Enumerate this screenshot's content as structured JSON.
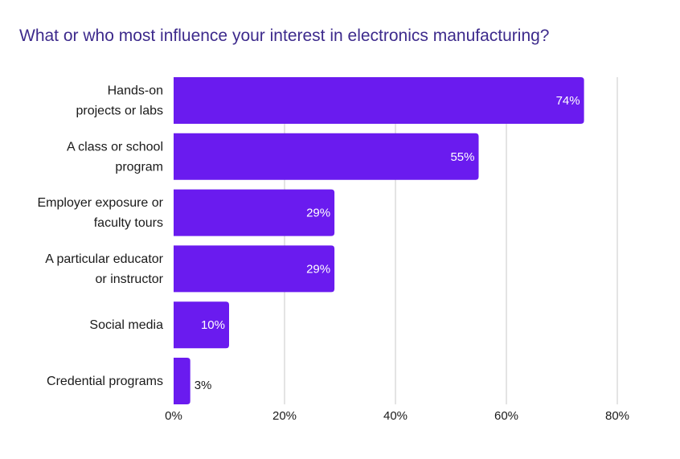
{
  "title": "What or who most influence your interest in electronics manufacturing?",
  "chart_data": {
    "type": "bar",
    "orientation": "horizontal",
    "categories": [
      [
        "Hands-on",
        "projects or labs"
      ],
      [
        "A class or school",
        "program"
      ],
      [
        "Employer exposure or",
        "faculty tours"
      ],
      [
        "A particular educator",
        "or instructor"
      ],
      [
        "Social media"
      ],
      [
        "Credential programs"
      ]
    ],
    "values": [
      74,
      55,
      29,
      29,
      10,
      3
    ],
    "value_labels": [
      "74%",
      "55%",
      "29%",
      "29%",
      "10%",
      "3%"
    ],
    "xlim": [
      0,
      80
    ],
    "xticks": [
      0,
      20,
      40,
      60,
      80
    ],
    "xtick_labels": [
      "0%",
      "20%",
      "40%",
      "60%",
      "80%"
    ],
    "grid": "vertical",
    "bar_color": "#6a1bef",
    "label_inside_color": "#ffffff",
    "label_outside_color": "#1a1a1a",
    "grid_color": "#c8c8c8"
  }
}
